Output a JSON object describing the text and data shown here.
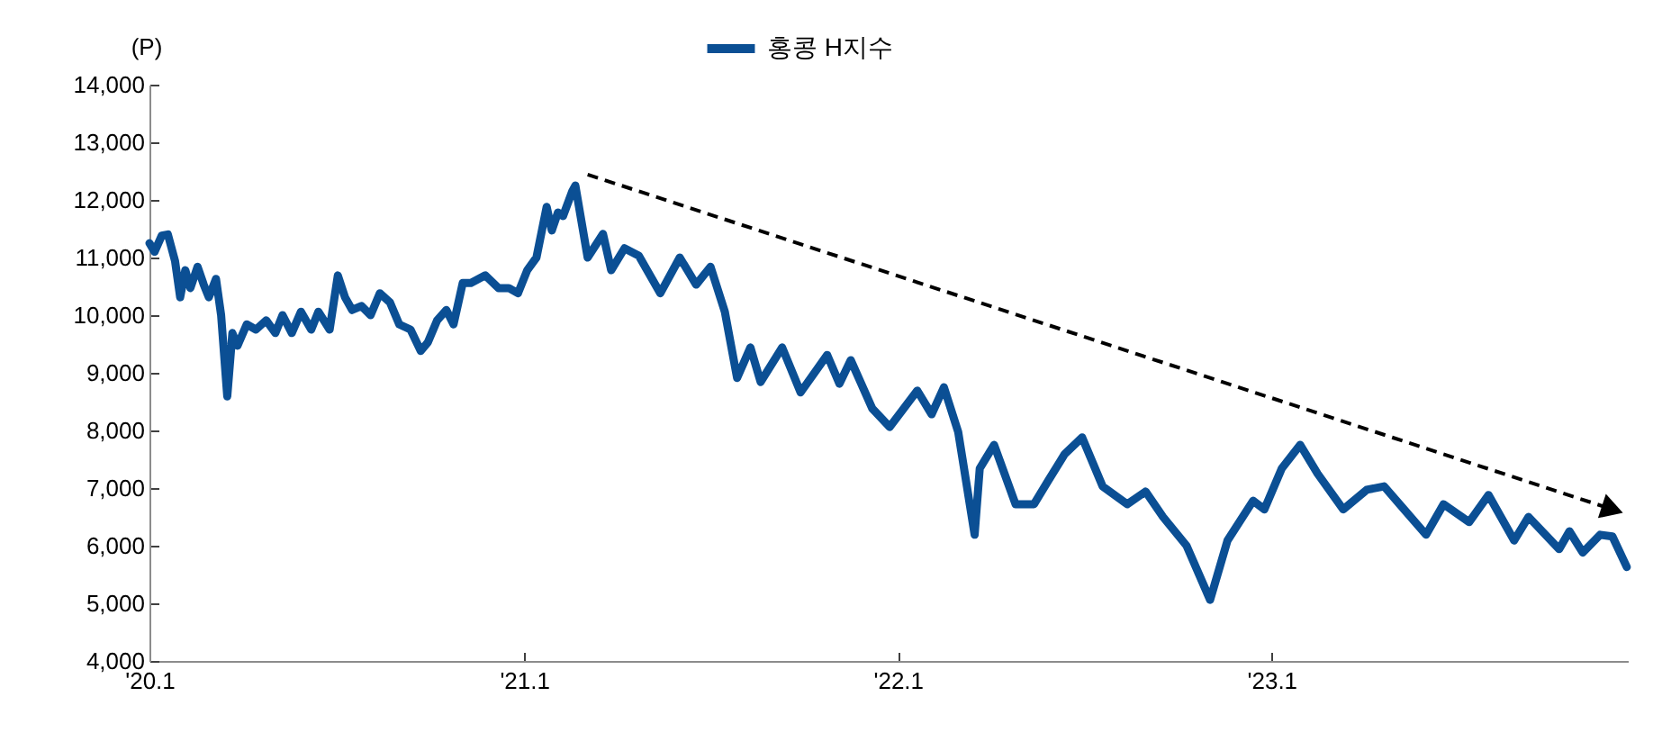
{
  "chart_data": {
    "type": "line",
    "ylabel": "(P)",
    "legend": "top",
    "grid": false,
    "xlim": [
      "2020-01-01",
      "2023-12-15"
    ],
    "xticks": [
      {
        "value": "2020-01",
        "label": "'20.1"
      },
      {
        "value": "2021-01",
        "label": "'21.1"
      },
      {
        "value": "2022-01",
        "label": "'22.1"
      },
      {
        "value": "2023-01",
        "label": "'23.1"
      }
    ],
    "ylim": [
      4000,
      14000
    ],
    "yticks": [
      {
        "value": 4000,
        "label": "4,000"
      },
      {
        "value": 5000,
        "label": "5,000"
      },
      {
        "value": 6000,
        "label": "6,000"
      },
      {
        "value": 7000,
        "label": "7,000"
      },
      {
        "value": 8000,
        "label": "8,000"
      },
      {
        "value": 9000,
        "label": "9,000"
      },
      {
        "value": 10000,
        "label": "10,000"
      },
      {
        "value": 11000,
        "label": "11,000"
      },
      {
        "value": 12000,
        "label": "12,000"
      },
      {
        "value": 13000,
        "label": "13,000"
      },
      {
        "value": 14000,
        "label": "14,000"
      }
    ],
    "series": [
      {
        "name": "홍콩 H지수",
        "color": "#0b4f94",
        "line_style": "solid",
        "x": [
          "2020-01-01",
          "2020-01-06",
          "2020-01-13",
          "2020-01-19",
          "2020-01-26",
          "2020-01-31",
          "2020-02-05",
          "2020-02-10",
          "2020-02-17",
          "2020-02-23",
          "2020-02-28",
          "2020-03-06",
          "2020-03-11",
          "2020-03-17",
          "2020-03-22",
          "2020-03-27",
          "2020-04-05",
          "2020-04-14",
          "2020-04-24",
          "2020-05-03",
          "2020-05-10",
          "2020-05-19",
          "2020-05-28",
          "2020-06-07",
          "2020-06-14",
          "2020-06-25",
          "2020-07-03",
          "2020-07-10",
          "2020-07-17",
          "2020-07-26",
          "2020-08-04",
          "2020-08-13",
          "2020-08-23",
          "2020-09-01",
          "2020-09-12",
          "2020-09-22",
          "2020-09-29",
          "2020-10-08",
          "2020-10-17",
          "2020-10-24",
          "2020-11-02",
          "2020-11-10",
          "2020-11-24",
          "2020-12-07",
          "2020-12-17",
          "2020-12-26",
          "2021-01-04",
          "2021-01-13",
          "2021-01-23",
          "2021-01-28",
          "2021-02-03",
          "2021-02-08",
          "2021-02-17",
          "2021-02-20",
          "2021-03-04",
          "2021-03-19",
          "2021-03-27",
          "2021-04-09",
          "2021-04-23",
          "2021-05-14",
          "2021-06-02",
          "2021-06-18",
          "2021-07-02",
          "2021-07-16",
          "2021-07-28",
          "2021-08-10",
          "2021-08-20",
          "2021-09-10",
          "2021-09-28",
          "2021-10-24",
          "2021-11-05",
          "2021-11-16",
          "2021-12-07",
          "2021-12-24",
          "2022-01-20",
          "2022-02-03",
          "2022-02-15",
          "2022-03-01",
          "2022-03-17",
          "2022-03-22",
          "2022-04-05",
          "2022-04-26",
          "2022-05-14",
          "2022-05-28",
          "2022-06-13",
          "2022-06-30",
          "2022-07-20",
          "2022-08-13",
          "2022-08-31",
          "2022-09-17",
          "2022-10-10",
          "2022-11-02",
          "2022-11-19",
          "2022-12-14",
          "2022-12-25",
          "2023-01-11",
          "2023-01-29",
          "2023-02-15",
          "2023-03-12",
          "2023-04-04",
          "2023-04-21",
          "2023-05-09",
          "2023-06-01",
          "2023-06-18",
          "2023-07-13",
          "2023-08-01",
          "2023-08-26",
          "2023-09-09",
          "2023-10-09",
          "2023-10-19",
          "2023-11-01",
          "2023-11-18",
          "2023-11-30",
          "2023-12-14"
        ],
        "values": [
          11250,
          11100,
          11380,
          11400,
          10940,
          10310,
          10780,
          10470,
          10840,
          10530,
          10310,
          10630,
          10000,
          8590,
          9690,
          9470,
          9840,
          9750,
          9910,
          9690,
          10000,
          9690,
          10060,
          9750,
          10060,
          9750,
          10690,
          10310,
          10090,
          10160,
          10000,
          10380,
          10220,
          9840,
          9750,
          9380,
          9530,
          9910,
          10090,
          9840,
          10560,
          10560,
          10690,
          10470,
          10470,
          10380,
          10780,
          11000,
          11880,
          11470,
          11780,
          11720,
          12150,
          12250,
          11000,
          11410,
          10780,
          11160,
          11030,
          10380,
          11000,
          10530,
          10840,
          10060,
          8910,
          9440,
          8840,
          9440,
          8660,
          9310,
          8810,
          9220,
          8380,
          8060,
          8690,
          8280,
          8750,
          7970,
          6190,
          7340,
          7750,
          6720,
          6720,
          7130,
          7590,
          7880,
          7030,
          6720,
          6940,
          6500,
          6000,
          5060,
          6090,
          6780,
          6630,
          7340,
          7750,
          7250,
          6630,
          6970,
          7030,
          6660,
          6190,
          6720,
          6410,
          6880,
          6090,
          6500,
          5940,
          6250,
          5880,
          6190,
          6160,
          5630
        ]
      },
      {
        "type": "line",
        "color": "#000000",
        "line_style": "dashed",
        "x": [
          "2021-03-04",
          "2023-11-30"
        ],
        "values": [
          12440,
          6630
        ]
      }
    ]
  }
}
